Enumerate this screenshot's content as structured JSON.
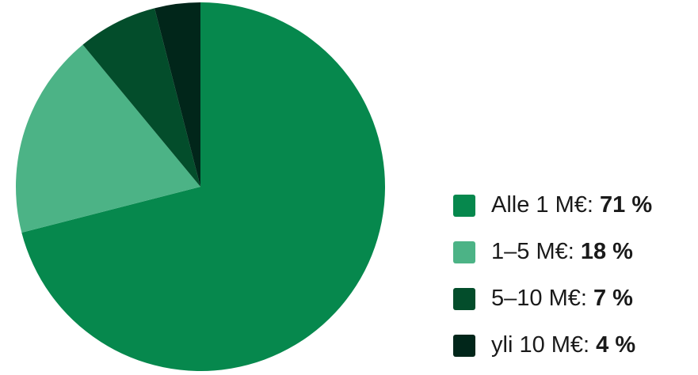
{
  "chart_data": {
    "type": "pie",
    "slices": [
      {
        "label": "Alle 1 M€:",
        "value": 71,
        "value_text": "71 %",
        "color": "#06884d"
      },
      {
        "label": "1–5 M€:",
        "value": 18,
        "value_text": "18 %",
        "color": "#4cb386"
      },
      {
        "label": "5–10 M€:",
        "value": 7,
        "value_text": "7 %",
        "color": "#034d2b"
      },
      {
        "label": "yli 10 M€:",
        "value": 4,
        "value_text": "4 %",
        "color": "#01261a"
      }
    ],
    "legend_position": "right"
  }
}
